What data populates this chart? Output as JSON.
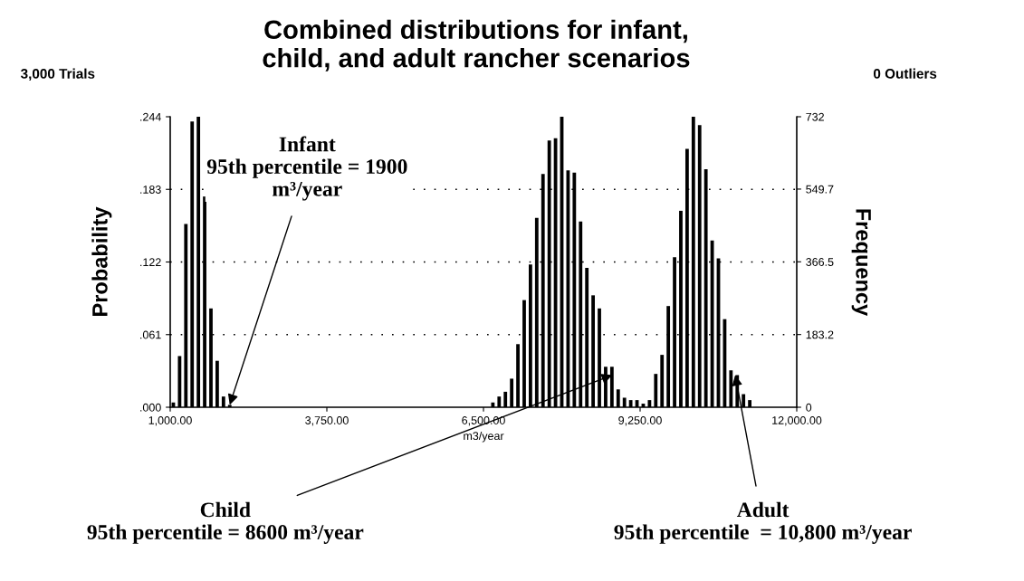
{
  "chart_data": {
    "type": "histogram",
    "title": "Combined distributions for infant,\nchild, and adult rancher scenarios",
    "xlabel": "m3/year",
    "ylabel": "Probability",
    "y2label": "Frequency",
    "bins": [
      1000,
      1110,
      1220,
      1330,
      1440,
      1550,
      1660,
      1770,
      1880,
      1990,
      2100,
      2210,
      2320,
      2430,
      2540,
      2650,
      2760,
      2870,
      2980,
      3090,
      3200,
      3310,
      3420,
      3530,
      3640,
      3750,
      3860,
      3970,
      4080,
      4190,
      4300,
      4410,
      4520,
      4630,
      4740,
      4850,
      4960,
      5070,
      5180,
      5290,
      5400,
      5510,
      5620,
      5730,
      5840,
      5950,
      6060,
      6170,
      6280,
      6390,
      6500,
      6610,
      6720,
      6830,
      6940,
      7050,
      7160,
      7270,
      7380,
      7490,
      7600,
      7710,
      7820,
      7930,
      8040,
      8150,
      8260,
      8370,
      8480,
      8590,
      8700,
      8810,
      8920,
      9030,
      9140,
      9250,
      9360,
      9470,
      9580,
      9690,
      9800,
      9910,
      10020,
      10130,
      10240,
      10350,
      10460,
      10570,
      10680,
      10790,
      10900,
      11010,
      11120,
      11230,
      11340,
      11450,
      11560,
      11670,
      11780,
      11890,
      12000
    ],
    "values": [
      0.004,
      0.043,
      0.154,
      0.24,
      0.244,
      0.177,
      0.083,
      0.039,
      0.009,
      0.002,
      0,
      0,
      0,
      0,
      0,
      0,
      0,
      0,
      0,
      0,
      0,
      0,
      0,
      0,
      0,
      0,
      0,
      0,
      0,
      0,
      0,
      0,
      0,
      0,
      0,
      0,
      0,
      0,
      0,
      0,
      0,
      0,
      0,
      0,
      0,
      0,
      0,
      0,
      0,
      0,
      0,
      0.004,
      0.009,
      0.013,
      0.024,
      0.053,
      0.09,
      0.12,
      0.159,
      0.196,
      0.224,
      0.226,
      0.244,
      0.199,
      0.197,
      0.156,
      0.117,
      0.094,
      0.083,
      0.034,
      0.034,
      0.015,
      0.008,
      0.006,
      0.006,
      0.003,
      0.006,
      0.028,
      0.044,
      0.085,
      0.126,
      0.165,
      0.217,
      0.244,
      0.237,
      0.2,
      0.14,
      0.125,
      0.074,
      0.031,
      0.027,
      0.011,
      0.006,
      0,
      0,
      0,
      0,
      0,
      0,
      0
    ],
    "color": "#000000",
    "xlim": [
      1000,
      12000
    ],
    "xticks": [
      {
        "value": 1000,
        "label": "1,000.00"
      },
      {
        "value": 3750,
        "label": "3,750.00"
      },
      {
        "value": 6500,
        "label": "6,500.00"
      },
      {
        "value": 9250,
        "label": "9,250.00"
      },
      {
        "value": 12000,
        "label": "12,000.00"
      }
    ],
    "ylim": [
      0,
      0.244
    ],
    "yticks": [
      {
        "value": 0,
        "label": ".000"
      },
      {
        "value": 0.061,
        "label": ".061"
      },
      {
        "value": 0.122,
        "label": ".122"
      },
      {
        "value": 0.183,
        "label": ".183"
      },
      {
        "value": 0.244,
        "label": ".244"
      }
    ],
    "y2lim": [
      0,
      732
    ],
    "y2ticks": [
      0,
      {
        "value": 183.2,
        "label": "183.2"
      },
      {
        "value": 366.5,
        "label": "366.5"
      },
      {
        "value": 549.7,
        "label": "549.7"
      },
      732
    ],
    "grid": "y",
    "annotations": [
      "3,000 Trials",
      "0 Outliers",
      {
        "text": "Infant\n95th percentile = 1900\nm³/year",
        "x": 2045,
        "y": 0.002
      },
      {
        "text": "Child\n95th percentile = 8600 m³/year",
        "x": 8760,
        "y": 0.027
      },
      {
        "text": "Adult\n95th percentile  = 10,800 m³/year",
        "x": 10920,
        "y": 0.027
      }
    ]
  }
}
